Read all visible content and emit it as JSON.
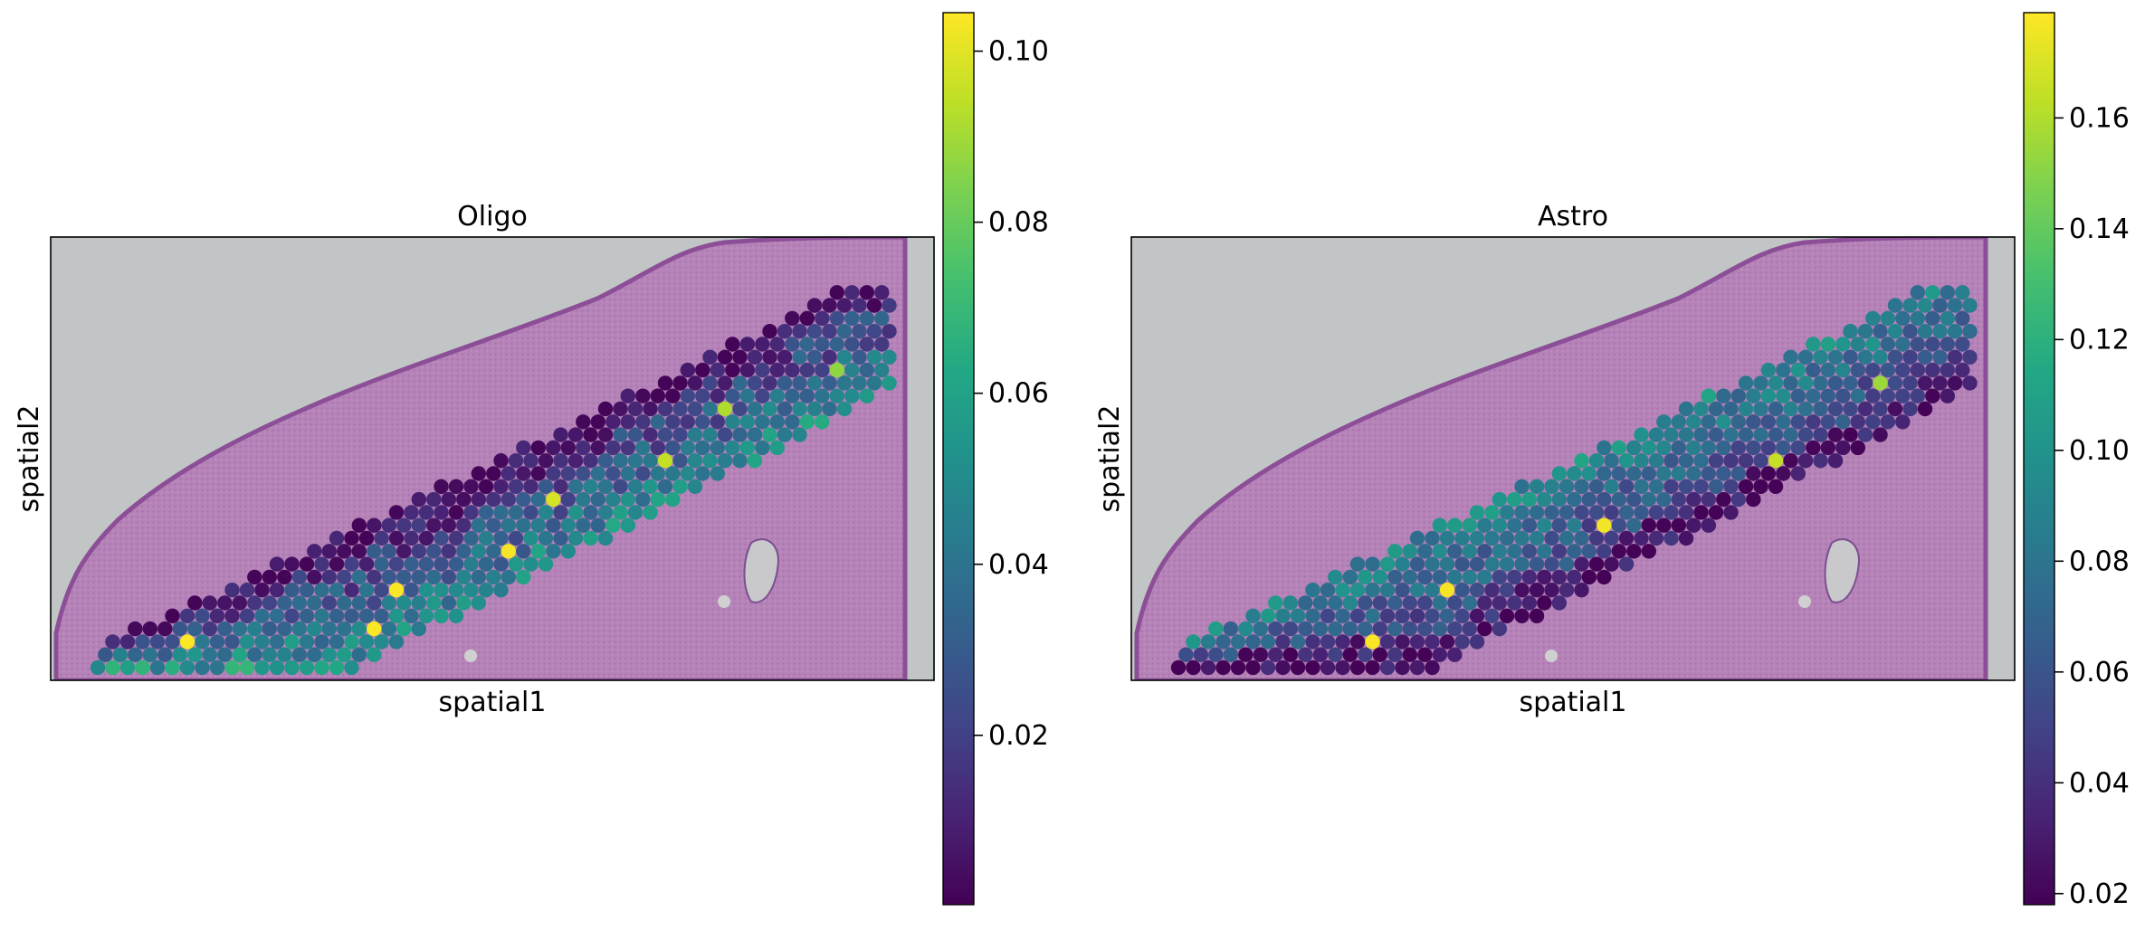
{
  "chart_data": [
    {
      "type": "scatter",
      "title": "Oligo",
      "xlabel": "spatial1",
      "ylabel": "spatial2",
      "colormap": "viridis",
      "colorbar": {
        "range": [
          0.0002,
          0.1045
        ],
        "ticks": [
          0.02,
          0.04,
          0.06,
          0.08,
          0.1
        ],
        "tick_labels": [
          "0.02",
          "0.04",
          "0.06",
          "0.08",
          "0.10"
        ]
      },
      "spot_value_range": [
        0.001,
        0.104
      ],
      "highlight_spots": [
        0.104,
        0.104,
        0.104,
        0.103,
        0.098,
        0.095,
        0.092,
        0.087
      ]
    },
    {
      "type": "scatter",
      "title": "Astro",
      "xlabel": "spatial1",
      "ylabel": "spatial2",
      "colormap": "viridis",
      "colorbar": {
        "range": [
          0.018,
          0.179
        ],
        "ticks": [
          0.02,
          0.04,
          0.06,
          0.08,
          0.1,
          0.12,
          0.14,
          0.16
        ],
        "tick_labels": [
          "0.02",
          "0.04",
          "0.06",
          "0.08",
          "0.10",
          "0.12",
          "0.14",
          "0.16"
        ]
      },
      "spot_value_range": [
        0.019,
        0.178
      ],
      "highlight_spots": [
        0.178,
        0.177,
        0.176,
        0.165,
        0.155
      ]
    }
  ],
  "colors": {
    "tissue": "#b07ab5",
    "tissue_edge": "#9a5fa3",
    "glass": "#c2c5c5",
    "axes_frame": "#000000"
  }
}
